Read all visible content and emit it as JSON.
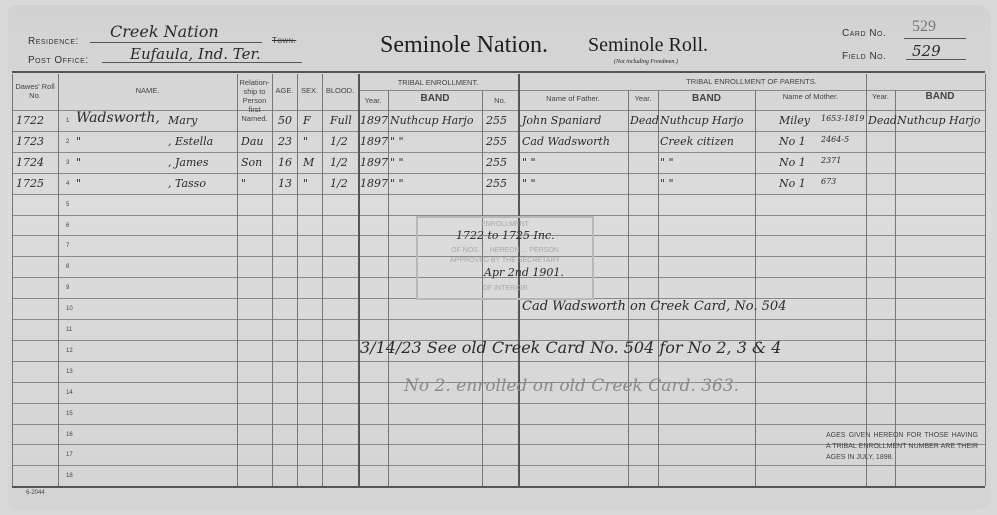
{
  "header": {
    "residence_label": "Residence:",
    "residence_value": "Creek Nation",
    "town_label": "Town.",
    "post_office_label": "Post Office:",
    "post_office_value": "Eufaula, Ind. Ter.",
    "title_nation": "Seminole Nation.",
    "title_roll": "Seminole Roll.",
    "subtitle": "(Not including Freedmen.)",
    "card_no_label": "Card No.",
    "card_no_value": "529",
    "field_no_label": "Field No.",
    "field_no_value": "529"
  },
  "columns": {
    "dawes": "Dawes' Roll No.",
    "name": "NAME.",
    "relationship": "Relation-ship to Person first Named.",
    "age": "AGE.",
    "sex": "SEX.",
    "blood": "BLOOD.",
    "tribal_enrollment": "TRIBAL ENROLLMENT.",
    "year": "Year.",
    "band": "BAND",
    "no": "No.",
    "parents": "TRIBAL ENROLLMENT OF PARENTS.",
    "father": "Name of Father.",
    "father_year": "Year.",
    "father_band": "BAND",
    "mother": "Name of Mother.",
    "mother_year": "Year.",
    "mother_band": "BAND"
  },
  "row_numbers": [
    "1",
    "2",
    "3",
    "4",
    "5",
    "6",
    "7",
    "8",
    "9",
    "10",
    "11",
    "12",
    "13",
    "14",
    "15",
    "16",
    "17",
    "18"
  ],
  "rows": [
    {
      "dawes": "1722",
      "surname": "Wadsworth,",
      "given": "Mary",
      "relationship": "",
      "age": "50",
      "sex": "F",
      "blood": "Full",
      "year": "1897",
      "band": "Nuthcup Harjo",
      "no": "255",
      "father": "John Spaniard",
      "father_year": "Dead",
      "father_band": "Nuthcup Harjo",
      "mother": "Miley",
      "mother_note": "1653-1819",
      "mother_year": "Dead",
      "mother_band": "Nuthcup Harjo"
    },
    {
      "dawes": "1723",
      "surname": "\"",
      "given": ", Estella",
      "relationship": "Dau",
      "age": "23",
      "sex": "\"",
      "blood": "1/2",
      "year": "1897",
      "band": "\"    \"",
      "no": "255",
      "father": "Cad Wadsworth",
      "father_year": "",
      "father_band": "Creek citizen",
      "mother": "No 1",
      "mother_note": "2464-5",
      "mother_year": "",
      "mother_band": ""
    },
    {
      "dawes": "1724",
      "surname": "\"",
      "given": ", James",
      "relationship": "Son",
      "age": "16",
      "sex": "M",
      "blood": "1/2",
      "year": "1897",
      "band": "\"    \"",
      "no": "255",
      "father": "\"    \"",
      "father_year": "",
      "father_band": "\"    \"",
      "mother": "No 1",
      "mother_note": "2371",
      "mother_year": "",
      "mother_band": ""
    },
    {
      "dawes": "1725",
      "surname": "\"",
      "given": ", Tasso",
      "relationship": "\"",
      "age": "13",
      "sex": "\"",
      "blood": "1/2",
      "year": "1897",
      "band": "\"    \"",
      "no": "255",
      "father": "\"    \"",
      "father_year": "",
      "father_band": "\"    \"",
      "mother": "No 1",
      "mother_note": "673",
      "mother_year": "",
      "mother_band": ""
    }
  ],
  "stamp": {
    "line1": "ENROLLMENT",
    "line2": "OF NOS. ... HEREON ... PERSON",
    "line3": "APPROVED BY THE SECRETARY",
    "line4": "OF INTERIOR",
    "handwritten_range": "1722 to 1725 Inc.",
    "handwritten_date": "Apr 2nd 1901."
  },
  "notes": [
    "Cad Wadsworth on Creek Card, No. 504",
    "3/14/23  See old Creek Card No. 504 for No 2, 3 & 4",
    "No 2. enrolled on old Creek Card. 363."
  ],
  "footer_note": "AGES GIVEN HEREON FOR THOSE HAVING A TRIBAL ENROLLMENT NUMBER ARE THEIR AGES IN JULY, 1898.",
  "form_number": "6-2044"
}
